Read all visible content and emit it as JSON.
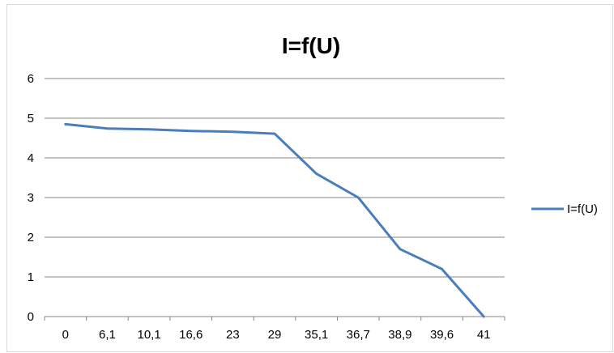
{
  "chart_data": {
    "type": "line",
    "title": "I=f(U)",
    "xlabel": "",
    "ylabel": "",
    "categories": [
      "0",
      "6,1",
      "10,1",
      "16,6",
      "23",
      "29",
      "35,1",
      "36,7",
      "38,9",
      "39,6",
      "41"
    ],
    "series": [
      {
        "name": "I=f(U)",
        "values": [
          4.85,
          4.74,
          4.72,
          4.68,
          4.66,
          4.61,
          3.6,
          3.0,
          1.7,
          1.2,
          0.0
        ],
        "color": "#4a7ebb"
      }
    ],
    "ylim": [
      0,
      6
    ],
    "yticks": [
      "0",
      "1",
      "2",
      "3",
      "4",
      "5",
      "6"
    ],
    "grid": true,
    "legend": "right",
    "colors": {
      "grid": "#868686",
      "axis": "#868686"
    }
  }
}
